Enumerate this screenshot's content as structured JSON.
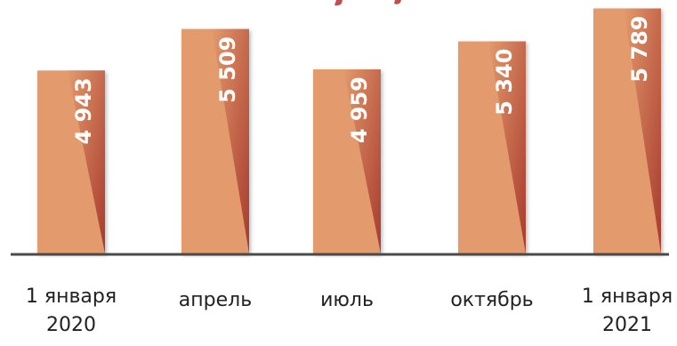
{
  "chart_data": {
    "type": "bar",
    "title": "",
    "xlabel": "",
    "ylabel": "",
    "categories": [
      [
        "1 января",
        "2020"
      ],
      [
        "апрель"
      ],
      [
        "июль"
      ],
      [
        "октябрь"
      ],
      [
        "1 января",
        "2021"
      ]
    ],
    "values": [
      4943,
      5509,
      4959,
      5340,
      5789
    ],
    "value_labels": [
      "4 943",
      "5 509",
      "4 959",
      "5 340",
      "5 789"
    ],
    "ylim": [
      2450,
      5880
    ],
    "grid": false,
    "legend": "none",
    "colors": {
      "bar_light": "#E39A6C",
      "bar_dark": "#A83A2E",
      "axis_line": "#4A4A4A",
      "value_text": "#FFFFFF",
      "title_hint": "#C0504D"
    }
  }
}
